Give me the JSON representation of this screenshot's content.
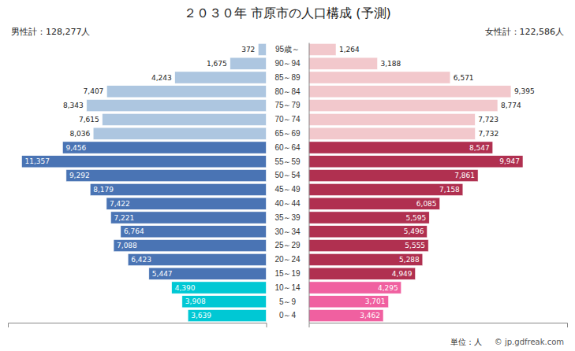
{
  "chart_data": {
    "type": "bar",
    "orientation": "horizontal",
    "title": "２０３０年 市原市の人口構成 (予測)",
    "categories": [
      "95歳～",
      "90～94",
      "85～89",
      "80～84",
      "75～79",
      "70～74",
      "65～69",
      "60～64",
      "55～59",
      "50～54",
      "45～49",
      "40～44",
      "35～39",
      "30～34",
      "25～29",
      "20～24",
      "15～19",
      "10～14",
      "5～9",
      "0～4"
    ],
    "series": [
      {
        "colors": [
          "#adc6e0",
          "#adc6e0",
          "#adc6e0",
          "#adc6e0",
          "#adc6e0",
          "#adc6e0",
          "#adc6e0",
          "#4a74b4",
          "#4a74b4",
          "#4a74b4",
          "#4a74b4",
          "#4a74b4",
          "#4a74b4",
          "#4a74b4",
          "#4a74b4",
          "#4a74b4",
          "#4a74b4",
          "#00c8d4",
          "#00c8d4",
          "#00c8d4"
        ],
        "values": [
          372,
          1675,
          4243,
          7407,
          8343,
          7615,
          8036,
          9456,
          11357,
          9292,
          8179,
          7422,
          7221,
          6764,
          7088,
          6423,
          5447,
          4390,
          3908,
          3639
        ],
        "value_labels": [
          "372",
          "1,675",
          "4,243",
          "7,407",
          "8,343",
          "7,615",
          "8,036",
          "9,456",
          "11,357",
          "9,292",
          "8,179",
          "7,422",
          "7,221",
          "6,764",
          "7,088",
          "6,423",
          "5,447",
          "4,390",
          "3,908",
          "3,639"
        ]
      },
      {
        "colors": [
          "#f2c8cc",
          "#f2c8cc",
          "#f2c8cc",
          "#f2c8cc",
          "#f2c8cc",
          "#f2c8cc",
          "#f2c8cc",
          "#b03050",
          "#b03050",
          "#b03050",
          "#b03050",
          "#b03050",
          "#b03050",
          "#b03050",
          "#b03050",
          "#b03050",
          "#b03050",
          "#f060a0",
          "#f060a0",
          "#f060a0"
        ],
        "values": [
          1264,
          3188,
          6571,
          9395,
          8774,
          7723,
          7732,
          8547,
          9947,
          7861,
          7158,
          6085,
          5595,
          5496,
          5555,
          5288,
          4949,
          4295,
          3701,
          3462
        ],
        "value_labels": [
          "1,264",
          "3,188",
          "6,571",
          "9,395",
          "8,774",
          "7,723",
          "7,732",
          "8,547",
          "9,947",
          "7,861",
          "7,158",
          "6,085",
          "5,595",
          "5,496",
          "5,555",
          "5,288",
          "4,949",
          "4,295",
          "3,701",
          "3,462"
        ]
      }
    ],
    "xlim": [
      0,
      12000
    ],
    "data_labels": true,
    "tick_labels": "y",
    "annotations": [
      "男性計：128,277人",
      "女性計：122,586人",
      "単位：人",
      "© jp.gdfreak.com"
    ]
  }
}
